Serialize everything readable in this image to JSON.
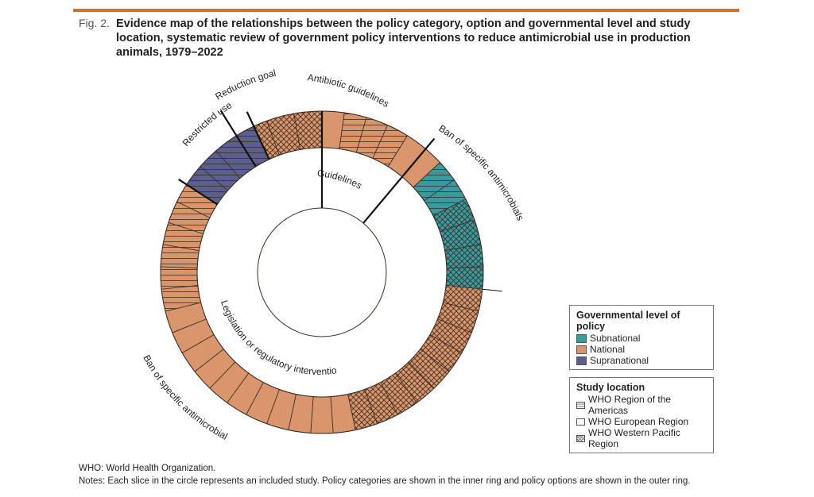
{
  "figure": {
    "label": "Fig. 2.",
    "title": "Evidence map of the relationships between the policy category, option and governmental level and study location, systematic review of government policy interventions to reduce antimicrobial use in production animals, 1979–2022"
  },
  "colors": {
    "national": "#d9956b",
    "subnational": "#3a9aa0",
    "supranational": "#5b5f8f",
    "rule": "#c9703f"
  },
  "chart_data": {
    "type": "donut",
    "inner_ring": [
      {
        "label": "Guidelines",
        "start_deg": 0,
        "end_deg": 40
      },
      {
        "label": "Legislation or regulatory interventions",
        "start_deg": 40,
        "end_deg": 360
      }
    ],
    "outer_ring_categories": [
      {
        "label": "Antibiotic guidelines",
        "start_deg": 0,
        "end_deg": 40
      },
      {
        "label": "Ban of specific antimicrobials",
        "start_deg": 40,
        "end_deg": 96
      },
      {
        "label": "Ban of specific antimicrobials",
        "start_deg": 96,
        "end_deg": 303
      },
      {
        "label": "Restricted use",
        "start_deg": 303,
        "end_deg": 328
      },
      {
        "label": "Reduction goals",
        "start_deg": 328,
        "end_deg": 335
      },
      {
        "label": "",
        "start_deg": 335,
        "end_deg": 360
      }
    ],
    "slices": [
      {
        "level": "National",
        "location": "Western Pacific",
        "start_deg": 340,
        "end_deg": 350
      },
      {
        "level": "National",
        "location": "Western Pacific",
        "start_deg": 350,
        "end_deg": 360
      },
      {
        "level": "National",
        "location": "Europe",
        "start_deg": 0,
        "end_deg": 8
      },
      {
        "level": "National",
        "location": "Americas",
        "start_deg": 8,
        "end_deg": 16
      },
      {
        "level": "National",
        "location": "Americas",
        "start_deg": 16,
        "end_deg": 24
      },
      {
        "level": "National",
        "location": "Americas",
        "start_deg": 24,
        "end_deg": 32
      },
      {
        "level": "National",
        "location": "Europe",
        "start_deg": 32,
        "end_deg": 40
      },
      {
        "level": "National",
        "location": "Europe",
        "start_deg": 40,
        "end_deg": 47
      },
      {
        "level": "Subnational",
        "location": "Americas",
        "start_deg": 47,
        "end_deg": 55
      },
      {
        "level": "Subnational",
        "location": "Americas",
        "start_deg": 55,
        "end_deg": 63
      },
      {
        "level": "Subnational",
        "location": "Western Pacific",
        "start_deg": 63,
        "end_deg": 71
      },
      {
        "level": "Subnational",
        "location": "Western Pacific",
        "start_deg": 71,
        "end_deg": 80
      },
      {
        "level": "Subnational",
        "location": "Western Pacific",
        "start_deg": 80,
        "end_deg": 88
      },
      {
        "level": "Subnational",
        "location": "Western Pacific",
        "start_deg": 88,
        "end_deg": 96
      },
      {
        "level": "National",
        "location": "Western Pacific",
        "start_deg": 96,
        "end_deg": 104
      },
      {
        "level": "National",
        "location": "Western Pacific",
        "start_deg": 104,
        "end_deg": 112
      },
      {
        "level": "National",
        "location": "Western Pacific",
        "start_deg": 112,
        "end_deg": 120
      },
      {
        "level": "National",
        "location": "Western Pacific",
        "start_deg": 120,
        "end_deg": 128
      },
      {
        "level": "National",
        "location": "Western Pacific",
        "start_deg": 128,
        "end_deg": 136
      },
      {
        "level": "National",
        "location": "Western Pacific",
        "start_deg": 136,
        "end_deg": 144
      },
      {
        "level": "National",
        "location": "Western Pacific",
        "start_deg": 144,
        "end_deg": 152
      },
      {
        "level": "National",
        "location": "Western Pacific",
        "start_deg": 152,
        "end_deg": 160
      },
      {
        "level": "National",
        "location": "Western Pacific",
        "start_deg": 160,
        "end_deg": 168
      },
      {
        "level": "National",
        "location": "Europe",
        "start_deg": 168,
        "end_deg": 176
      },
      {
        "level": "National",
        "location": "Europe",
        "start_deg": 176,
        "end_deg": 184
      },
      {
        "level": "National",
        "location": "Europe",
        "start_deg": 184,
        "end_deg": 192
      },
      {
        "level": "National",
        "location": "Europe",
        "start_deg": 192,
        "end_deg": 200
      },
      {
        "level": "National",
        "location": "Europe",
        "start_deg": 200,
        "end_deg": 208
      },
      {
        "level": "National",
        "location": "Europe",
        "start_deg": 208,
        "end_deg": 216
      },
      {
        "level": "National",
        "location": "Europe",
        "start_deg": 216,
        "end_deg": 224
      },
      {
        "level": "National",
        "location": "Europe",
        "start_deg": 224,
        "end_deg": 232
      },
      {
        "level": "National",
        "location": "Europe",
        "start_deg": 232,
        "end_deg": 240
      },
      {
        "level": "National",
        "location": "Europe",
        "start_deg": 240,
        "end_deg": 248
      },
      {
        "level": "National",
        "location": "Europe",
        "start_deg": 248,
        "end_deg": 256
      },
      {
        "level": "National",
        "location": "Americas",
        "start_deg": 256,
        "end_deg": 264
      },
      {
        "level": "National",
        "location": "Americas",
        "start_deg": 264,
        "end_deg": 272
      },
      {
        "level": "National",
        "location": "Americas",
        "start_deg": 272,
        "end_deg": 280
      },
      {
        "level": "National",
        "location": "Americas",
        "start_deg": 280,
        "end_deg": 288
      },
      {
        "level": "National",
        "location": "Americas",
        "start_deg": 288,
        "end_deg": 296
      },
      {
        "level": "National",
        "location": "Americas",
        "start_deg": 296,
        "end_deg": 303
      },
      {
        "level": "Supranational",
        "location": "Americas",
        "start_deg": 303,
        "end_deg": 311
      },
      {
        "level": "Supranational",
        "location": "Americas",
        "start_deg": 311,
        "end_deg": 319
      },
      {
        "level": "Supranational",
        "location": "Americas",
        "start_deg": 319,
        "end_deg": 328
      },
      {
        "level": "Supranational",
        "location": "Americas",
        "start_deg": 328,
        "end_deg": 335
      },
      {
        "level": "National",
        "location": "Western Pacific",
        "start_deg": 335,
        "end_deg": 340
      }
    ]
  },
  "ring_labels": {
    "guidelines": "Guidelines",
    "legislation": "Legislation or regulatory interventions",
    "antibiotic_guidelines": "Antibiotic guidelines",
    "ban_right": "Ban of specific antimicrobials",
    "ban_left": "Ban of specific antimicrobials",
    "restricted_use": "Restricted use",
    "reduction_goals": "Reduction goals"
  },
  "legend_level": {
    "title": "Governmental level of policy",
    "items": [
      {
        "label": "Subnational"
      },
      {
        "label": "National"
      },
      {
        "label": "Supranational"
      }
    ]
  },
  "legend_location": {
    "title": "Study location",
    "items": [
      {
        "label": "WHO Region of the Americas",
        "pattern": "horizontal"
      },
      {
        "label": "WHO European Region",
        "pattern": "none"
      },
      {
        "label": "WHO Western Pacific Region",
        "pattern": "crosshatch"
      }
    ]
  },
  "footer": {
    "abbrev": "WHO: World Health Organization.",
    "notes": "Notes: Each slice in the circle represents an included study. Policy categories are shown in the inner ring and policy options are shown in the outer ring."
  }
}
